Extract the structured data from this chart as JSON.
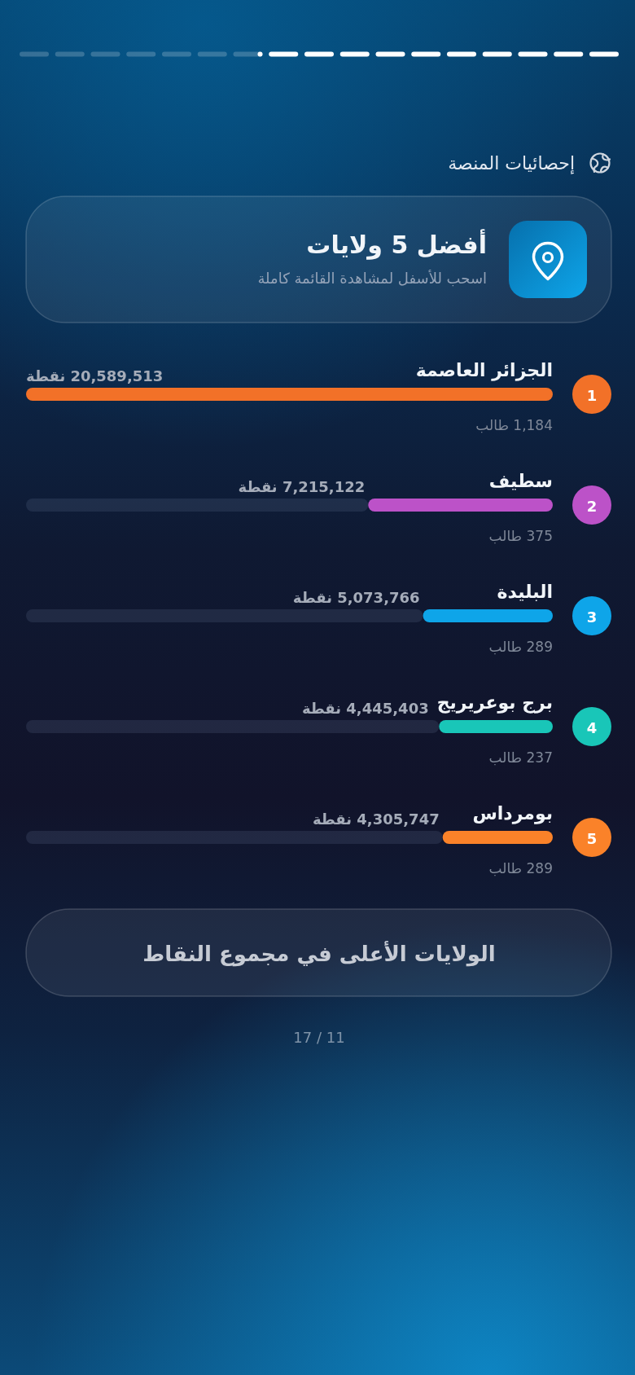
{
  "chart_data": {
    "type": "bar",
    "orientation": "horizontal",
    "title": "أفضل 5 ولايات",
    "subtitle": "اسحب للأسفل لمشاهدة القائمة كاملة",
    "categories": [
      "الجزائر العاصمة",
      "سطيف",
      "البليدة",
      "برج بوعريريج",
      "بومرداس"
    ],
    "values": [
      20589513,
      7215122,
      5073766,
      4445403,
      4305747
    ],
    "colors": [
      "#f27128",
      "#bc52c8",
      "#0ea5e9",
      "#19c6b8",
      "#fa8229"
    ],
    "value_labels": [
      "20,589,513 نقطة",
      "7,215,122 نقطة",
      "5,073,766 نقطة",
      "4,445,403 نقطة",
      "4,305,747 نقطة"
    ],
    "tick_labels": "y",
    "annotations": [
      "إحصائيات المنصة",
      "الولايات الأعلى في مجموع النقاط",
      "17 / 11",
      "1",
      "1,184 طالب",
      "2",
      "375 طالب",
      "3",
      "289 طالب",
      "4",
      "237 طالب",
      "5",
      "289 طالب"
    ]
  }
}
